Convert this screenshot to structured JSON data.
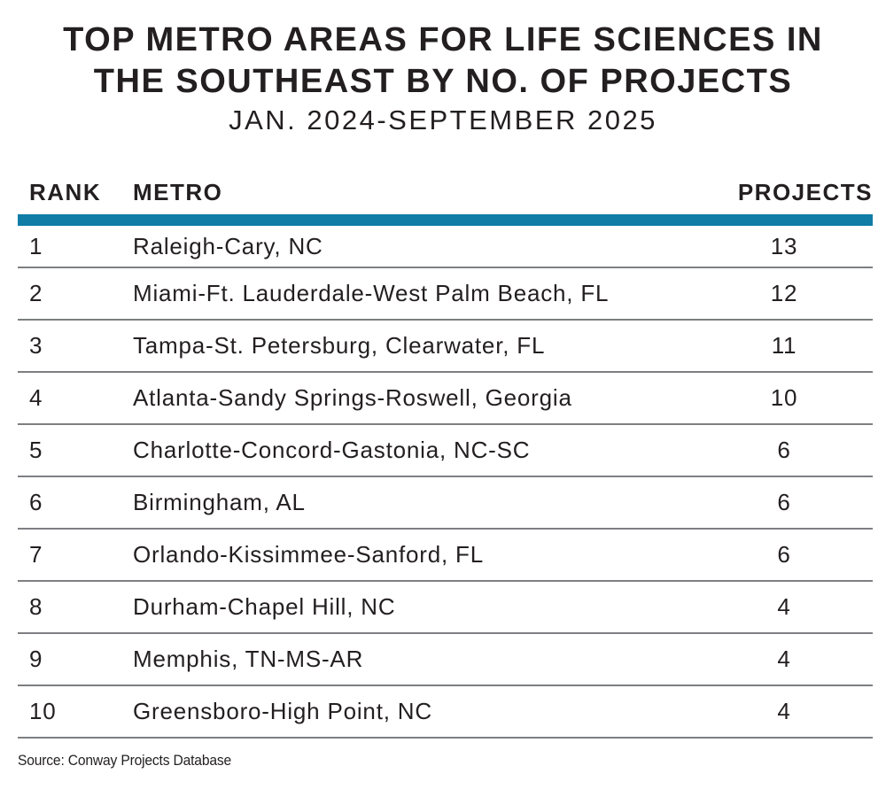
{
  "title": {
    "lines": [
      "TOP METRO AREAS FOR LIFE SCIENCES IN",
      "THE SOUTHEAST BY NO. OF PROJECTS"
    ],
    "subtitle": "JAN. 2024-SEPTEMBER 2025"
  },
  "table": {
    "headers": {
      "rank": "RANK",
      "metro": "METRO",
      "projects": "PROJECTS"
    },
    "rows": [
      {
        "rank": "1",
        "metro": "Raleigh-Cary, NC",
        "projects": "13"
      },
      {
        "rank": "2",
        "metro": "Miami-Ft. Lauderdale-West Palm Beach, FL",
        "projects": "12"
      },
      {
        "rank": "3",
        "metro": "Tampa-St. Petersburg, Clearwater, FL",
        "projects": "11"
      },
      {
        "rank": "4",
        "metro": "Atlanta-Sandy Springs-Roswell, Georgia",
        "projects": "10"
      },
      {
        "rank": "5",
        "metro": "Charlotte-Concord-Gastonia, NC-SC",
        "projects": "6"
      },
      {
        "rank": "6",
        "metro": "Birmingham, AL",
        "projects": "6"
      },
      {
        "rank": "7",
        "metro": "Orlando-Kissimmee-Sanford, FL",
        "projects": "6"
      },
      {
        "rank": "8",
        "metro": "Durham-Chapel Hill, NC",
        "projects": "4"
      },
      {
        "rank": "9",
        "metro": "Memphis, TN-MS-AR",
        "projects": "4"
      },
      {
        "rank": "10",
        "metro": "Greensboro-High Point, NC",
        "projects": "4"
      }
    ]
  },
  "source": "Source: Conway Projects Database",
  "colors": {
    "accent_bar": "#0f7da6",
    "text": "#231f20",
    "divider": "#7d7f82"
  },
  "chart_data": {
    "type": "table",
    "title": "TOP METRO AREAS FOR LIFE SCIENCES IN THE SOUTHEAST BY NO. OF PROJECTS",
    "subtitle": "JAN. 2024-SEPTEMBER 2025",
    "columns": [
      "RANK",
      "METRO",
      "PROJECTS"
    ],
    "categories": [
      "Raleigh-Cary, NC",
      "Miami-Ft. Lauderdale-West Palm Beach, FL",
      "Tampa-St. Petersburg, Clearwater, FL",
      "Atlanta-Sandy Springs-Roswell, Georgia",
      "Charlotte-Concord-Gastonia, NC-SC",
      "Birmingham, AL",
      "Orlando-Kissimmee-Sanford, FL",
      "Durham-Chapel Hill, NC",
      "Memphis, TN-MS-AR",
      "Greensboro-High Point, NC"
    ],
    "values": [
      13,
      12,
      11,
      10,
      6,
      6,
      6,
      4,
      4,
      4
    ],
    "ranks": [
      1,
      2,
      3,
      4,
      5,
      6,
      7,
      8,
      9,
      10
    ],
    "source": "Source: Conway Projects Database"
  }
}
